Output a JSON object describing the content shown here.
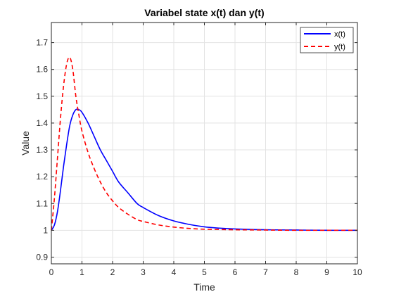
{
  "chart_data": {
    "type": "line",
    "title": "Variabel state x(t) dan y(t)",
    "xlabel": "Time",
    "ylabel": "Value",
    "xlim": [
      0,
      10
    ],
    "ylim": [
      0.875,
      1.775
    ],
    "xticks": [
      0,
      1,
      2,
      3,
      4,
      5,
      6,
      7,
      8,
      9,
      10
    ],
    "yticks": [
      0.9,
      1.0,
      1.1,
      1.2,
      1.3,
      1.4,
      1.5,
      1.6,
      1.7
    ],
    "xtick_labels": [
      "0",
      "1",
      "2",
      "3",
      "4",
      "5",
      "6",
      "7",
      "8",
      "9",
      "10"
    ],
    "ytick_labels": [
      "0.9",
      "1",
      "1.1",
      "1.2",
      "1.3",
      "1.4",
      "1.5",
      "1.6",
      "1.7"
    ],
    "grid": true,
    "legend_position": "top-right",
    "x": [
      0,
      0.1,
      0.2,
      0.3,
      0.4,
      0.5,
      0.6,
      0.7,
      0.8,
      0.9,
      1.0,
      1.2,
      1.4,
      1.6,
      1.8,
      2.0,
      2.2,
      2.5,
      2.8,
      3.0,
      3.5,
      4.0,
      4.5,
      5.0,
      5.5,
      6.0,
      7.0,
      8.0,
      9.0,
      10.0
    ],
    "series": [
      {
        "name": "x(t)",
        "color": "#0000ff",
        "style": "solid",
        "values": [
          1.0,
          1.02,
          1.07,
          1.15,
          1.24,
          1.32,
          1.39,
          1.43,
          1.45,
          1.45,
          1.44,
          1.4,
          1.35,
          1.3,
          1.26,
          1.22,
          1.18,
          1.14,
          1.1,
          1.085,
          1.055,
          1.035,
          1.022,
          1.013,
          1.008,
          1.005,
          1.002,
          1.001,
          1.0,
          1.0
        ]
      },
      {
        "name": "y(t)",
        "color": "#ff0000",
        "style": "dashed",
        "values": [
          1.0,
          1.12,
          1.27,
          1.42,
          1.54,
          1.62,
          1.645,
          1.6,
          1.5,
          1.43,
          1.37,
          1.29,
          1.23,
          1.18,
          1.14,
          1.11,
          1.085,
          1.06,
          1.04,
          1.033,
          1.02,
          1.012,
          1.007,
          1.004,
          1.003,
          1.002,
          1.001,
          1.0,
          1.0,
          1.0
        ]
      }
    ]
  }
}
